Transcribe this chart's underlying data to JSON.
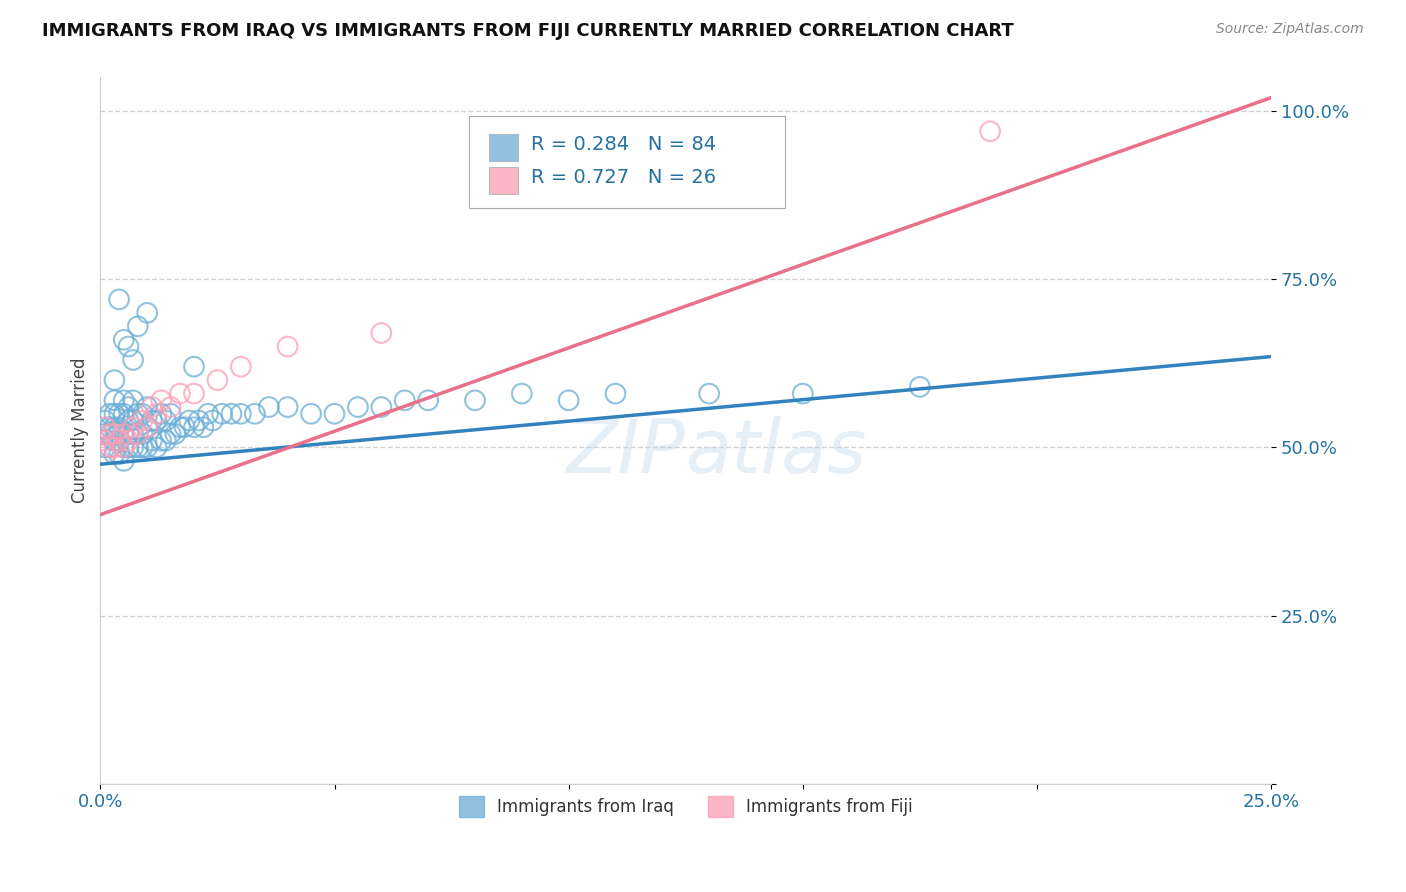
{
  "title": "IMMIGRANTS FROM IRAQ VS IMMIGRANTS FROM FIJI CURRENTLY MARRIED CORRELATION CHART",
  "source": "Source: ZipAtlas.com",
  "ylabel": "Currently Married",
  "xlim": [
    0.0,
    0.25
  ],
  "ylim": [
    0.0,
    1.05
  ],
  "xticks": [
    0.0,
    0.05,
    0.1,
    0.15,
    0.2,
    0.25
  ],
  "xtick_labels": [
    "0.0%",
    "",
    "",
    "",
    "",
    "25.0%"
  ],
  "yticks": [
    0.0,
    0.25,
    0.5,
    0.75,
    1.0
  ],
  "ytick_labels": [
    "",
    "25.0%",
    "50.0%",
    "75.0%",
    "100.0%"
  ],
  "iraq_color": "#6baed6",
  "fiji_color": "#fa9fb5",
  "iraq_line_color": "#3182bd",
  "fiji_line_color": "#e8708a",
  "legend_iraq_label": "Immigrants from Iraq",
  "legend_fiji_label": "Immigrants from Fiji",
  "iraq_R": "0.284",
  "iraq_N": "84",
  "fiji_R": "0.727",
  "fiji_N": "26",
  "watermark": "ZIPatlas",
  "iraq_line_x0": 0.0,
  "iraq_line_y0": 0.475,
  "iraq_line_x1": 0.25,
  "iraq_line_y1": 0.635,
  "fiji_line_x0": 0.0,
  "fiji_line_y0": 0.4,
  "fiji_line_x1": 0.25,
  "fiji_line_y1": 1.02,
  "iraq_scatter_x": [
    0.001,
    0.001,
    0.001,
    0.002,
    0.002,
    0.002,
    0.002,
    0.003,
    0.003,
    0.003,
    0.003,
    0.003,
    0.004,
    0.004,
    0.004,
    0.004,
    0.005,
    0.005,
    0.005,
    0.005,
    0.005,
    0.006,
    0.006,
    0.006,
    0.006,
    0.007,
    0.007,
    0.007,
    0.007,
    0.008,
    0.008,
    0.008,
    0.009,
    0.009,
    0.009,
    0.01,
    0.01,
    0.01,
    0.011,
    0.011,
    0.012,
    0.012,
    0.013,
    0.013,
    0.014,
    0.014,
    0.015,
    0.015,
    0.016,
    0.017,
    0.018,
    0.019,
    0.02,
    0.021,
    0.022,
    0.023,
    0.024,
    0.026,
    0.028,
    0.03,
    0.033,
    0.036,
    0.04,
    0.045,
    0.05,
    0.055,
    0.06,
    0.065,
    0.07,
    0.08,
    0.09,
    0.1,
    0.11,
    0.13,
    0.15,
    0.175,
    0.005,
    0.008,
    0.01,
    0.02,
    0.003,
    0.004,
    0.006,
    0.007
  ],
  "iraq_scatter_y": [
    0.5,
    0.52,
    0.54,
    0.5,
    0.52,
    0.53,
    0.55,
    0.49,
    0.51,
    0.53,
    0.55,
    0.57,
    0.49,
    0.51,
    0.53,
    0.55,
    0.48,
    0.5,
    0.52,
    0.55,
    0.57,
    0.5,
    0.52,
    0.54,
    0.56,
    0.5,
    0.52,
    0.54,
    0.57,
    0.5,
    0.52,
    0.55,
    0.5,
    0.52,
    0.55,
    0.5,
    0.53,
    0.56,
    0.51,
    0.54,
    0.5,
    0.54,
    0.51,
    0.55,
    0.51,
    0.54,
    0.52,
    0.55,
    0.52,
    0.53,
    0.53,
    0.54,
    0.53,
    0.54,
    0.53,
    0.55,
    0.54,
    0.55,
    0.55,
    0.55,
    0.55,
    0.56,
    0.56,
    0.55,
    0.55,
    0.56,
    0.56,
    0.57,
    0.57,
    0.57,
    0.58,
    0.57,
    0.58,
    0.58,
    0.58,
    0.59,
    0.66,
    0.68,
    0.7,
    0.62,
    0.6,
    0.72,
    0.65,
    0.63
  ],
  "fiji_scatter_x": [
    0.001,
    0.001,
    0.001,
    0.002,
    0.002,
    0.003,
    0.003,
    0.004,
    0.005,
    0.005,
    0.006,
    0.007,
    0.008,
    0.009,
    0.01,
    0.011,
    0.012,
    0.013,
    0.015,
    0.017,
    0.02,
    0.025,
    0.03,
    0.04,
    0.06,
    0.19
  ],
  "fiji_scatter_y": [
    0.49,
    0.51,
    0.53,
    0.5,
    0.52,
    0.5,
    0.52,
    0.51,
    0.5,
    0.52,
    0.51,
    0.53,
    0.52,
    0.54,
    0.53,
    0.56,
    0.55,
    0.57,
    0.56,
    0.58,
    0.58,
    0.6,
    0.62,
    0.65,
    0.67,
    0.97
  ]
}
